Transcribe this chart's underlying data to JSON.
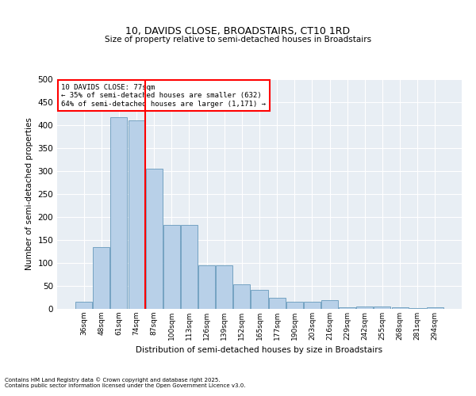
{
  "title": "10, DAVIDS CLOSE, BROADSTAIRS, CT10 1RD",
  "subtitle": "Size of property relative to semi-detached houses in Broadstairs",
  "xlabel": "Distribution of semi-detached houses by size in Broadstairs",
  "ylabel": "Number of semi-detached properties",
  "categories": [
    "36sqm",
    "48sqm",
    "61sqm",
    "74sqm",
    "87sqm",
    "100sqm",
    "113sqm",
    "126sqm",
    "139sqm",
    "152sqm",
    "165sqm",
    "177sqm",
    "190sqm",
    "203sqm",
    "216sqm",
    "229sqm",
    "242sqm",
    "255sqm",
    "268sqm",
    "281sqm",
    "294sqm"
  ],
  "values": [
    15,
    135,
    418,
    410,
    305,
    182,
    182,
    95,
    95,
    53,
    41,
    25,
    15,
    15,
    19,
    3,
    6,
    6,
    3,
    1,
    3
  ],
  "bar_color": "#b8d0e8",
  "bar_edge_color": "#6699bb",
  "vline_x_index": 3.5,
  "annotation_line1": "10 DAVIDS CLOSE: 77sqm",
  "annotation_line2": "← 35% of semi-detached houses are smaller (632)",
  "annotation_line3": "64% of semi-detached houses are larger (1,171) →",
  "footer_line1": "Contains HM Land Registry data © Crown copyright and database right 2025.",
  "footer_line2": "Contains public sector information licensed under the Open Government Licence v3.0.",
  "bg_color": "#e8eef4",
  "ylim": [
    0,
    500
  ],
  "yticks": [
    0,
    50,
    100,
    150,
    200,
    250,
    300,
    350,
    400,
    450,
    500
  ]
}
